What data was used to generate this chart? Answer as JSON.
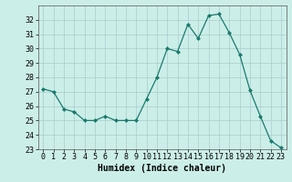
{
  "x": [
    0,
    1,
    2,
    3,
    4,
    5,
    6,
    7,
    8,
    9,
    10,
    11,
    12,
    13,
    14,
    15,
    16,
    17,
    18,
    19,
    20,
    21,
    22,
    23
  ],
  "y": [
    27.2,
    27.0,
    25.8,
    25.6,
    25.0,
    25.0,
    25.3,
    25.0,
    25.0,
    25.0,
    26.5,
    28.0,
    30.0,
    29.8,
    31.7,
    30.7,
    32.3,
    32.4,
    31.1,
    29.6,
    27.1,
    25.3,
    23.6,
    23.1
  ],
  "line_color": "#1a7a6e",
  "marker": "D",
  "marker_size": 2,
  "bg_color": "#cceee8",
  "grid_color": "#aacccc",
  "xlabel": "Humidex (Indice chaleur)",
  "xlabel_fontsize": 7,
  "tick_fontsize": 6,
  "ylim": [
    23,
    33
  ],
  "xlim": [
    -0.5,
    23.5
  ],
  "yticks": [
    23,
    24,
    25,
    26,
    27,
    28,
    29,
    30,
    31,
    32
  ],
  "xticks": [
    0,
    1,
    2,
    3,
    4,
    5,
    6,
    7,
    8,
    9,
    10,
    11,
    12,
    13,
    14,
    15,
    16,
    17,
    18,
    19,
    20,
    21,
    22,
    23
  ]
}
